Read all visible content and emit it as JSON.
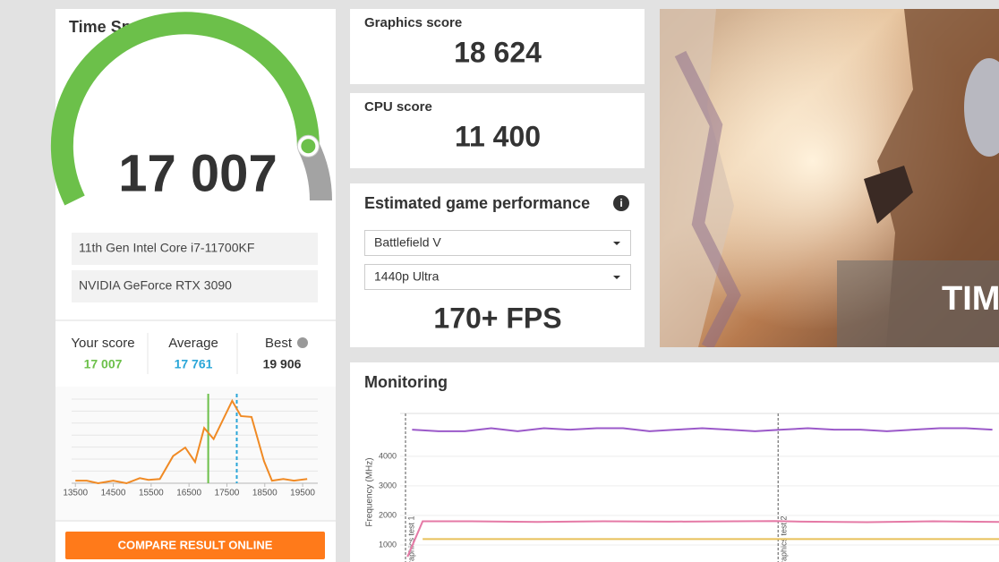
{
  "score_card": {
    "title": "Time Spy Score",
    "score": {
      "value": 17007,
      "label": "17 007"
    },
    "cpu": "11th Gen Intel Core i7-11700KF",
    "gpu": "NVIDIA GeForce RTX 3090",
    "comparison": [
      {
        "label": "Your score",
        "value": 17007,
        "value_label": "17 007",
        "color": "#6cc04a"
      },
      {
        "label": "Average",
        "value": 17761,
        "value_label": "17 761",
        "color": "#2aa6d8"
      },
      {
        "label": "Best",
        "value": 19906,
        "value_label": "19 906",
        "color": "#333333"
      }
    ],
    "button": "COMPARE RESULT ONLINE"
  },
  "graphics": {
    "label": "Graphics score",
    "value": "18 624"
  },
  "cpu_score": {
    "label": "CPU score",
    "value": "11 400"
  },
  "game": {
    "title": "Estimated game performance",
    "game": "Battlefield V",
    "preset": "1440p Ultra",
    "fps": "170+ FPS"
  },
  "banner": {
    "text": "TIM"
  },
  "chart_data": [
    {
      "type": "line",
      "color": "#f08a24",
      "x": [
        13500,
        13800,
        14100,
        14500,
        14850,
        15200,
        15430,
        15730,
        16080,
        16400,
        16660,
        16900,
        17150,
        17640,
        17870,
        18150,
        18480,
        18690,
        18990,
        19270,
        19620
      ],
      "values": [
        3,
        3,
        0,
        3,
        0,
        6,
        4,
        5,
        32,
        42,
        25,
        65,
        52,
        97,
        79,
        78,
        26,
        3,
        5,
        3,
        5
      ],
      "xlim": [
        13400,
        19900
      ],
      "xticks": [
        13500,
        14500,
        15500,
        16500,
        17500,
        18500,
        19500
      ],
      "ylim": [
        0,
        100
      ],
      "grid": true,
      "reference_lines": [
        {
          "value": 17007,
          "color": "#6cc04a",
          "style": "solid"
        },
        {
          "value": 17761,
          "color": "#2aa6d8",
          "style": "dashed"
        }
      ]
    },
    {
      "type": "line",
      "title": "Monitoring",
      "y_label": "Frequency (MHz)",
      "xlim": [
        0,
        90
      ],
      "ylim": [
        0,
        5450
      ],
      "yticks": [
        1000,
        2000,
        3000,
        4000
      ],
      "grid": true,
      "annotations": [
        {
          "x": 0,
          "label": "Graphics test 1"
        },
        {
          "x": 56.5,
          "label": "Graphics test 2"
        }
      ],
      "series": [
        {
          "color": "#9b59c9",
          "x": [
            1,
            5,
            9,
            13,
            17,
            21,
            25,
            29,
            33,
            37,
            41,
            45,
            49,
            53,
            57,
            61,
            65,
            69,
            73,
            77,
            81,
            85,
            89
          ],
          "values": [
            4900,
            4850,
            4850,
            4950,
            4850,
            4950,
            4900,
            4950,
            4950,
            4850,
            4900,
            4950,
            4900,
            4850,
            4900,
            4950,
            4900,
            4900,
            4850,
            4900,
            4950,
            4950,
            4900
          ]
        },
        {
          "color": "#e57aa6",
          "x": [
            0.3,
            2.6,
            10,
            20,
            30,
            40,
            50,
            56,
            60,
            70,
            80,
            90
          ],
          "values": [
            600,
            1800,
            1800,
            1780,
            1800,
            1790,
            1800,
            1810,
            1790,
            1770,
            1800,
            1780
          ]
        },
        {
          "color": "#e8c15a",
          "x": [
            2.6,
            90
          ],
          "values": [
            1200,
            1200
          ]
        }
      ]
    }
  ]
}
